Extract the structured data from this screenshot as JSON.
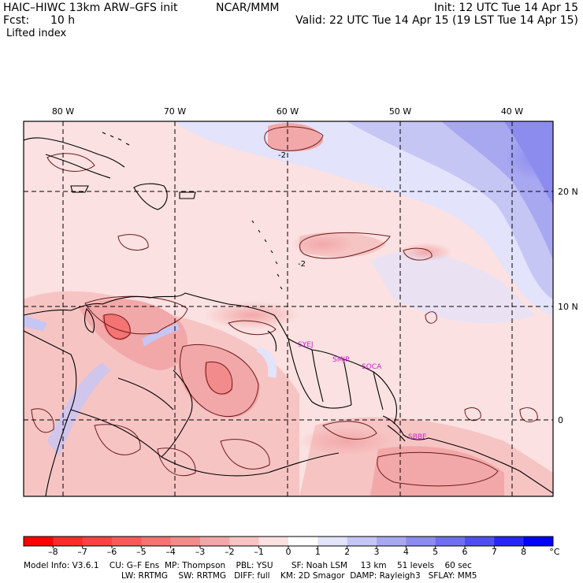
{
  "header": {
    "model_title": "HAIC–HIWC 13km ARW–GFS init",
    "org": "NCAR/MMM",
    "init": "Init: 12 UTC Tue 14 Apr 15",
    "fcst_label": "Fcst:",
    "fcst_value": "10 h",
    "valid": "Valid: 22 UTC Tue 14 Apr 15 (19 LST Tue 14 Apr 15)",
    "field": "Lifted index"
  },
  "map": {
    "lon_labels": [
      "80 W",
      "70 W",
      "60 W",
      "50 W",
      "40 W"
    ],
    "lat_labels": [
      "20 N",
      "10 N",
      "0"
    ],
    "contour_labels": [
      "-2",
      "-2"
    ],
    "stations": [
      "SYEJ",
      "SMJP",
      "SOCA",
      "SBBE"
    ],
    "colors": {
      "station": "#cc22cc",
      "coast": "#000000",
      "grid": "#000000"
    }
  },
  "colorbar": {
    "ticks": [
      "–8",
      "–7",
      "–6",
      "–5",
      "–4",
      "–3",
      "–2",
      "–1",
      "0",
      "1",
      "2",
      "3",
      "4",
      "5",
      "6",
      "7",
      "8"
    ],
    "unit": "°C",
    "colors": [
      "#ff0000",
      "#ff2a2a",
      "#fa4343",
      "#f75a5a",
      "#f47373",
      "#f28c8c",
      "#f2a8a8",
      "#f7c4c4",
      "#fbe1e1",
      "#ffffff",
      "#e3e3fb",
      "#c6c6f5",
      "#a8a8f1",
      "#8c8cee",
      "#6f6fed",
      "#4f4fef",
      "#2727f4",
      "#0000ff"
    ]
  },
  "footer": {
    "line1": "Model Info: V3.6.1    CU: G–F Ens  MP: Thompson    PBL: YSU       SF: Noah LSM     13 km    51 levels    60 sec",
    "line2": "LW: RRTMG    SW: RRTMG   DIFF: full    KM: 2D Smagor  DAMP: Rayleigh3   SFLAY: MM5"
  }
}
